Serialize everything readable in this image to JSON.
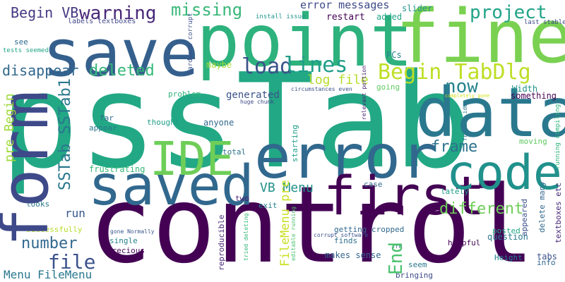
{
  "background": "#ffffff",
  "words": [
    {
      "text": "pssTab",
      "color": "#22a884"
    },
    {
      "text": "control",
      "color": "#440154"
    },
    {
      "text": "error",
      "color": "#31688e"
    },
    {
      "text": "point",
      "color": "#2db27d"
    },
    {
      "text": "fine",
      "color": "#7ad151"
    },
    {
      "text": "save",
      "color": "#35608d"
    },
    {
      "text": "data",
      "color": "#2a788e"
    },
    {
      "text": "form",
      "color": "#3e4989"
    },
    {
      "text": "saved",
      "color": "#31688e"
    },
    {
      "text": "code",
      "color": "#21918c"
    },
    {
      "text": "first",
      "color": "#440154"
    },
    {
      "text": "IDE",
      "color": "#6ece58"
    },
    {
      "text": "Begin TabDlg",
      "color": "#bddf26"
    },
    {
      "text": "project",
      "color": "#20a386"
    },
    {
      "text": "warning",
      "color": "#482878"
    },
    {
      "text": "missing",
      "color": "#37b878"
    },
    {
      "text": "load",
      "color": "#3b528b"
    },
    {
      "text": "lines",
      "color": "#1f9e89"
    },
    {
      "text": "deleted",
      "color": "#35b779"
    },
    {
      "text": "frame",
      "color": "#2c728e"
    },
    {
      "text": "number",
      "color": "#31688e"
    },
    {
      "text": "file",
      "color": "#3b528b"
    },
    {
      "text": "End",
      "color": "#4ac16d"
    },
    {
      "text": "now",
      "color": "#26828e"
    },
    {
      "text": "different",
      "color": "#6ece58"
    },
    {
      "text": "SSTab SSTab1",
      "color": "#2a788e"
    },
    {
      "text": "pre Begin",
      "color": "#a0da39"
    },
    {
      "text": "Begin VB",
      "color": "#443983"
    },
    {
      "text": "disappear",
      "color": "#31688e"
    },
    {
      "text": "error messages",
      "color": "#3e4a89"
    },
    {
      "text": "log file",
      "color": "#b5de2b"
    },
    {
      "text": "VB Menu",
      "color": "#21918c"
    },
    {
      "text": "FileMenu pre",
      "color": "#c8e020"
    },
    {
      "text": "Menu FileMenu",
      "color": "#2a788e"
    },
    {
      "text": "run",
      "color": "#38588c"
    },
    {
      "text": "generated",
      "color": "#3b528b"
    },
    {
      "text": "restart",
      "color": "#440154"
    },
    {
      "text": "added",
      "color": "#20a486"
    },
    {
      "text": "slider",
      "color": "#21918c"
    },
    {
      "text": "install issue",
      "color": "#1f968b"
    },
    {
      "text": "last stable",
      "color": "#3e4989"
    },
    {
      "text": "labels textboxes",
      "color": "#404688"
    },
    {
      "text": "see",
      "color": "#31688e"
    },
    {
      "text": "tests seemed",
      "color": "#21a685"
    },
    {
      "text": "hardware corrupt",
      "color": "#3b528b"
    },
    {
      "text": "maybe",
      "color": "#a5db36"
    },
    {
      "text": "PCs",
      "color": "#26828e"
    },
    {
      "text": "going",
      "color": "#5ec962"
    },
    {
      "text": "Width",
      "color": "#21918c"
    },
    {
      "text": "something",
      "color": "#440154"
    },
    {
      "text": "problem",
      "color": "#2fb47c"
    },
    {
      "text": "huge chunk",
      "color": "#3e4989"
    },
    {
      "text": "circumstances even",
      "color": "#3b528b"
    },
    {
      "text": "relevant portion",
      "color": "#482173"
    },
    {
      "text": "completely gone",
      "color": "#d2e21b"
    },
    {
      "text": "fraking idea",
      "color": "#2a788e"
    },
    {
      "text": "running compiling",
      "color": "#2fb47c"
    },
    {
      "text": "anyone",
      "color": "#31688e"
    },
    {
      "text": "thought",
      "color": "#1f9e89"
    },
    {
      "text": "far",
      "color": "#31688e"
    },
    {
      "text": "appear",
      "color": "#2a788e"
    },
    {
      "text": "starting",
      "color": "#1f9e89"
    },
    {
      "text": "moving",
      "color": "#5ec962"
    },
    {
      "text": "textboxes etc",
      "color": "#482878"
    },
    {
      "text": "frustrating",
      "color": "#35b779"
    },
    {
      "text": "total",
      "color": "#2c728e"
    },
    {
      "text": "two",
      "color": "#481f70"
    },
    {
      "text": "exit",
      "color": "#26828e"
    },
    {
      "text": "case",
      "color": "#31688e"
    },
    {
      "text": "lately",
      "color": "#1f9e89"
    },
    {
      "text": "appeared",
      "color": "#3b528b"
    },
    {
      "text": "looks",
      "color": "#2a788e"
    },
    {
      "text": "successfully",
      "color": "#b5de2b"
    },
    {
      "text": "gone Normally",
      "color": "#39568c"
    },
    {
      "text": "single",
      "color": "#26828e"
    },
    {
      "text": "precious",
      "color": "#440154"
    },
    {
      "text": "reproducible",
      "color": "#482878"
    },
    {
      "text": "tried deleting",
      "color": "#35b779"
    },
    {
      "text": "editable running",
      "color": "#4ac16d"
    },
    {
      "text": "getting cropped",
      "color": "#31688e"
    },
    {
      "text": "corrupt software",
      "color": "#3b528b"
    },
    {
      "text": "finds",
      "color": "#2d708e"
    },
    {
      "text": "makes sense",
      "color": "#33638d"
    },
    {
      "text": "seem",
      "color": "#2a788e"
    },
    {
      "text": "bringing",
      "color": "#3e4989"
    },
    {
      "text": "frm",
      "color": "#31688e"
    },
    {
      "text": "helpful",
      "color": "#440154"
    },
    {
      "text": "delete many",
      "color": "#31688e"
    },
    {
      "text": "posted",
      "color": "#22a884"
    },
    {
      "text": "question",
      "color": "#2a788e"
    },
    {
      "text": "tabs",
      "color": "#3b528b"
    },
    {
      "text": "Height",
      "color": "#26828e"
    },
    {
      "text": "info",
      "color": "#31688e"
    }
  ]
}
